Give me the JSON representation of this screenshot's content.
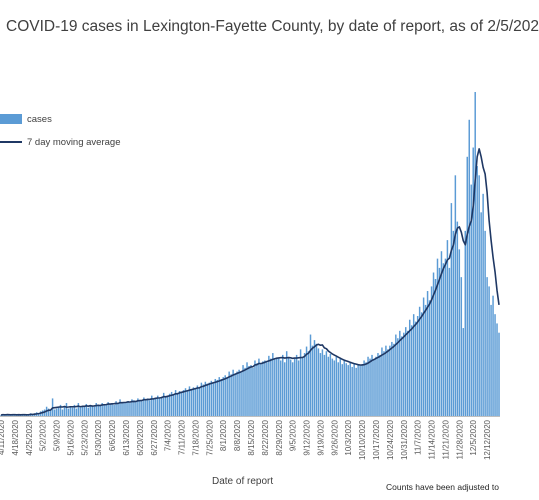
{
  "chart_data": {
    "type": "bar",
    "title": "COVID-19 cases in Lexington-Fayette County, by date of report, as of 2/5/202",
    "xlabel": "Date of report",
    "ylabel": "",
    "ylim": [
      0,
      100
    ],
    "grid": false,
    "legend_position": "top-left",
    "footnote": "Counts have been adjusted to",
    "tick_labels": [
      "4/11/2020",
      "4/18/2020",
      "4/25/2020",
      "5/2/2020",
      "5/9/2020",
      "5/16/2020",
      "5/23/2020",
      "5/30/2020",
      "6/6/2020",
      "6/13/2020",
      "6/20/2020",
      "6/27/2020",
      "7/4/2020",
      "7/11/2020",
      "7/18/2020",
      "7/25/2020",
      "8/1/2020",
      "8/8/2020",
      "8/15/2020",
      "8/22/2020",
      "8/29/2020",
      "9/5/2020",
      "9/12/2020",
      "9/19/2020",
      "9/26/2020",
      "10/3/2020",
      "10/10/2020",
      "10/17/2020",
      "10/24/2020",
      "10/31/2020",
      "11/7/2020",
      "11/14/2020",
      "11/21/2020",
      "11/28/2020",
      "12/5/2020",
      "12/12/2020"
    ],
    "series": [
      {
        "name": "cases",
        "kind": "bar",
        "color": "#5b9bd5",
        "weekly_values": [
          [
            1,
            2,
            1,
            2,
            1,
            1,
            2
          ],
          [
            1,
            1,
            2,
            1,
            2,
            1,
            1
          ],
          [
            2,
            3,
            2,
            3,
            4,
            3,
            5
          ],
          [
            6,
            7,
            10,
            8,
            6,
            19,
            7
          ],
          [
            8,
            9,
            12,
            7,
            10,
            14,
            8
          ],
          [
            10,
            9,
            12,
            8,
            14,
            9,
            11
          ],
          [
            10,
            13,
            9,
            12,
            11,
            10,
            14
          ],
          [
            12,
            11,
            14,
            13,
            12,
            15,
            13
          ],
          [
            14,
            12,
            16,
            13,
            18,
            15,
            14
          ],
          [
            15,
            16,
            14,
            18,
            17,
            16,
            19
          ],
          [
            17,
            16,
            20,
            18,
            19,
            17,
            22
          ],
          [
            18,
            20,
            22,
            19,
            21,
            25,
            20
          ],
          [
            22,
            24,
            26,
            23,
            28,
            25,
            27
          ],
          [
            26,
            28,
            30,
            27,
            32,
            29,
            31
          ],
          [
            30,
            33,
            31,
            36,
            34,
            37,
            35
          ],
          [
            36,
            38,
            35,
            40,
            39,
            42,
            40
          ],
          [
            42,
            44,
            41,
            48,
            45,
            50,
            46
          ],
          [
            48,
            50,
            47,
            55,
            52,
            58,
            54
          ],
          [
            55,
            52,
            60,
            57,
            62,
            56,
            59
          ],
          [
            60,
            58,
            65,
            62,
            68,
            61,
            63
          ],
          [
            62,
            60,
            66,
            58,
            70,
            63,
            61
          ],
          [
            58,
            62,
            66,
            60,
            72,
            64,
            68
          ],
          [
            75,
            70,
            88,
            76,
            82,
            78,
            73
          ],
          [
            68,
            72,
            66,
            70,
            64,
            67,
            62
          ],
          [
            60,
            64,
            58,
            62,
            56,
            60,
            57
          ],
          [
            55,
            58,
            53,
            57,
            52,
            56,
            54
          ],
          [
            56,
            60,
            58,
            64,
            62,
            66,
            61
          ],
          [
            64,
            68,
            66,
            74,
            70,
            76,
            72
          ],
          [
            76,
            80,
            78,
            88,
            84,
            92,
            86
          ],
          [
            90,
            96,
            92,
            104,
            98,
            110,
            102
          ],
          [
            108,
            118,
            112,
            128,
            120,
            135,
            125
          ],
          [
            140,
            155,
            148,
            170,
            160,
            178,
            165
          ],
          [
            170,
            190,
            160,
            230,
            200,
            260,
            210
          ],
          [
            180,
            150,
            95,
            200,
            280,
            320,
            250
          ],
          [
            290,
            350,
            270,
            260,
            220,
            240,
            200
          ],
          [
            150,
            140,
            120,
            130,
            110,
            100,
            90
          ]
        ]
      },
      {
        "name": "7 day moving average",
        "kind": "line",
        "color": "#1f3864"
      }
    ]
  }
}
